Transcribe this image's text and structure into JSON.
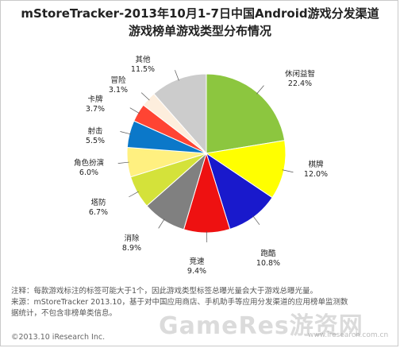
{
  "title_line1": "mStoreTracker-2013年10月1-7日中国Android游戏分发渠道",
  "title_line2": "游戏榜单游戏类型分布情况",
  "chart_data": {
    "type": "pie",
    "slices": [
      {
        "label": "休闲益智",
        "value": 22.4,
        "display": "22.4%",
        "color": "#8cc63f"
      },
      {
        "label": "棋牌",
        "value": 12.0,
        "display": "12.0%",
        "color": "#ffff00"
      },
      {
        "label": "跑酷",
        "value": 10.8,
        "display": "10.8%",
        "color": "#1919cc"
      },
      {
        "label": "竞速",
        "value": 9.4,
        "display": "9.4%",
        "color": "#ee1111"
      },
      {
        "label": "消除",
        "value": 8.9,
        "display": "8.9%",
        "color": "#808080"
      },
      {
        "label": "塔防",
        "value": 6.7,
        "display": "6.7%",
        "color": "#d4e23a"
      },
      {
        "label": "角色扮演",
        "value": 6.0,
        "display": "6.0%",
        "color": "#fff080"
      },
      {
        "label": "射击",
        "value": 5.5,
        "display": "5.5%",
        "color": "#0b78c9"
      },
      {
        "label": "卡牌",
        "value": 3.7,
        "display": "3.7%",
        "color": "#ff4433"
      },
      {
        "label": "冒险",
        "value": 3.1,
        "display": "3.1%",
        "color": "#fdeedd"
      },
      {
        "label": "其他",
        "value": 11.5,
        "display": "11.5%",
        "color": "#cccccc"
      }
    ]
  },
  "footer": {
    "note": "注释：每款游戏标注的标签可能大于1个，因此游戏类型标签总曝光量会大于游戏总曝光量。",
    "source_line1": "来源：mStoreTracker 2013.10，基于对中国应用商店、手机助手等应用分发渠道的应用榜单监测数",
    "source_line2": "据统计，不包含非榜单类信息。",
    "copyright": "©2013.10 iResearch Inc.",
    "watermark": "GameRes游资网",
    "watermark_url": "www.iresearch.com.cn"
  }
}
